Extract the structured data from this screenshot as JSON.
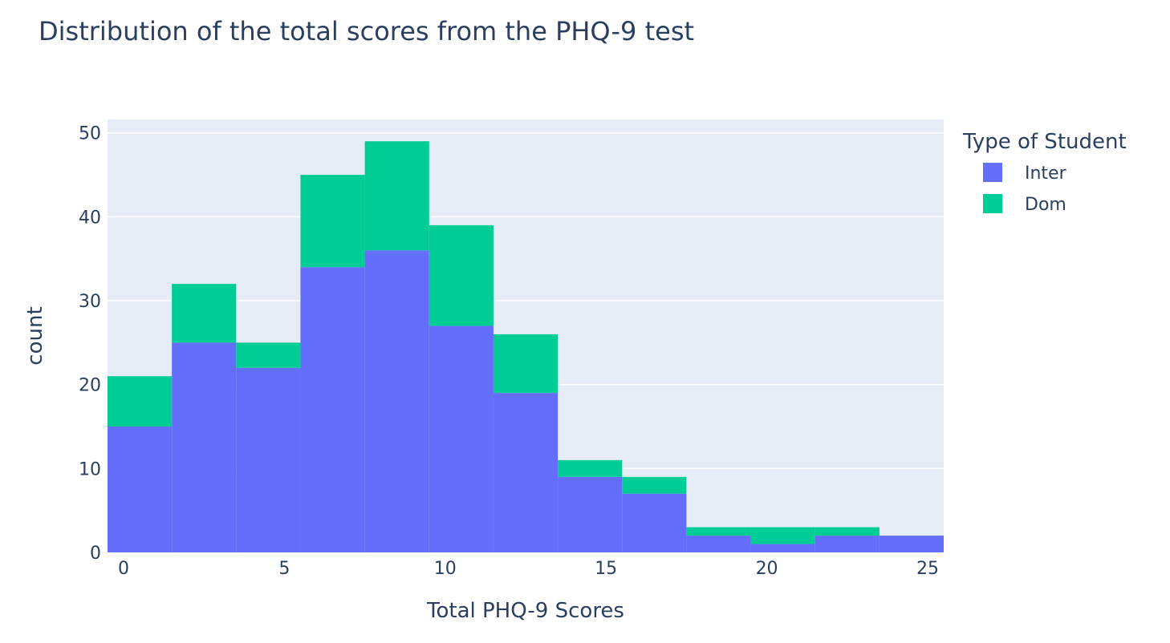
{
  "chart_data": {
    "type": "bar",
    "title": "Distribution of the total scores from the PHQ-9 test",
    "xlabel": "Total PHQ-9 Scores",
    "ylabel": "count",
    "xlim": [
      -0.5,
      25.5
    ],
    "ylim": [
      0,
      51.6
    ],
    "x_ticks": [
      0,
      5,
      10,
      15,
      20,
      25
    ],
    "y_ticks": [
      0,
      10,
      20,
      30,
      40,
      50
    ],
    "bin_width": 2,
    "bins": [
      [
        -0.5,
        1.5
      ],
      [
        1.5,
        3.5
      ],
      [
        3.5,
        5.5
      ],
      [
        5.5,
        7.5
      ],
      [
        7.5,
        9.5
      ],
      [
        9.5,
        11.5
      ],
      [
        11.5,
        13.5
      ],
      [
        13.5,
        15.5
      ],
      [
        15.5,
        17.5
      ],
      [
        17.5,
        19.5
      ],
      [
        19.5,
        21.5
      ],
      [
        21.5,
        23.5
      ],
      [
        23.5,
        25.5
      ]
    ],
    "barmode": "stack",
    "grid": true,
    "legend_title": "Type of Student",
    "legend_position": "top-right",
    "series": [
      {
        "name": "Inter",
        "color": "#636efa",
        "values": [
          15,
          25,
          22,
          34,
          36,
          27,
          19,
          9,
          7,
          2,
          1,
          2,
          2
        ]
      },
      {
        "name": "Dom",
        "color": "#00cc96",
        "values": [
          6,
          7,
          3,
          11,
          13,
          12,
          7,
          2,
          2,
          1,
          2,
          1,
          0
        ]
      }
    ]
  }
}
